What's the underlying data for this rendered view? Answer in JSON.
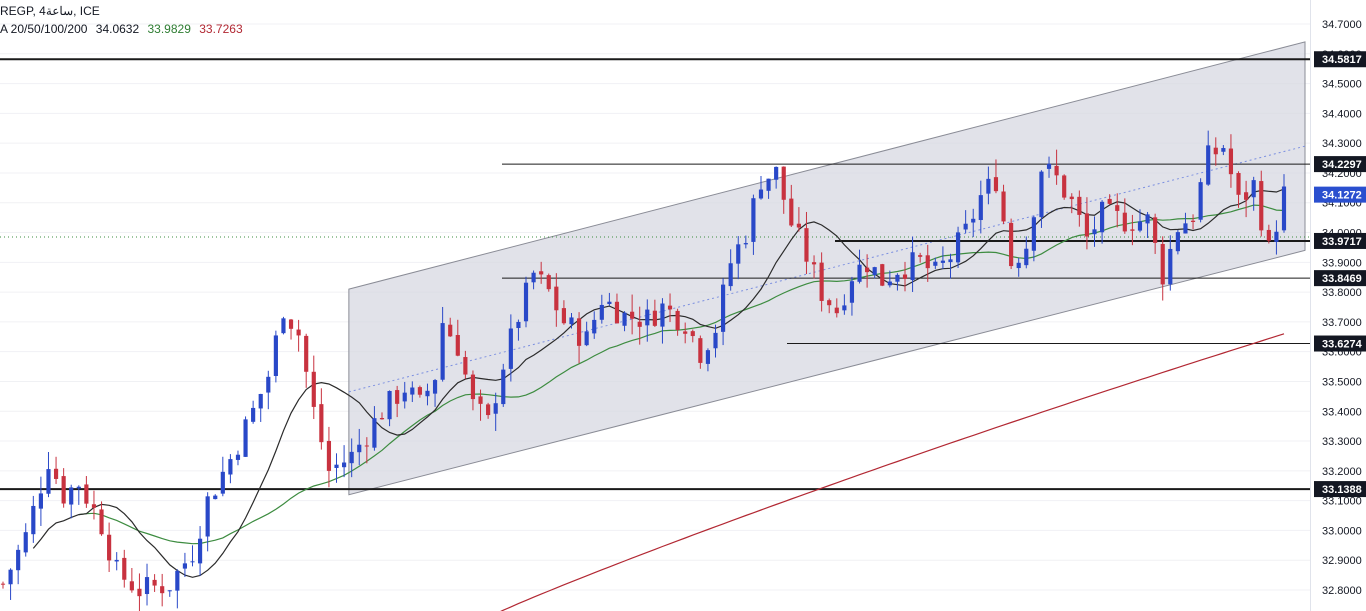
{
  "legend": {
    "symbol": "REGP, 4ساعة, ICE",
    "ma_label": "A 20/50/100/200",
    "ma_values": [
      {
        "value": "34.0632",
        "color": "#131722"
      },
      {
        "value": "33.9829",
        "color": "#2e7d32"
      },
      {
        "value": "33.7263",
        "color": "#b22833"
      }
    ]
  },
  "colors": {
    "up": "#2948c8",
    "down": "#c8323f",
    "ma20": "#2b2b2b",
    "ma50": "#3d8c40",
    "ma200": "#b22833",
    "channel_fill": "#d7d8e2",
    "current_price_tag": "#2a4fcf"
  },
  "chart_data": {
    "type": "candlestick",
    "ylim": [
      32.78,
      34.75
    ],
    "ytick_labels": [
      "32.8000",
      "32.9000",
      "33.0000",
      "33.1000",
      "33.2000",
      "33.3000",
      "33.4000",
      "33.5000",
      "33.6000",
      "33.7000",
      "33.8000",
      "33.9000",
      "34.0000",
      "34.1000",
      "34.2000",
      "34.3000",
      "34.4000",
      "34.5000",
      "34.6000",
      "34.7000"
    ],
    "price_levels": [
      {
        "label": "34.5817",
        "value": 34.5817,
        "weight": "heavy",
        "from": "left"
      },
      {
        "label": "34.2297",
        "value": 34.2297,
        "weight": "thin",
        "from": "mid"
      },
      {
        "label": "33.9717",
        "value": 33.9717,
        "weight": "heavy",
        "from": "mid"
      },
      {
        "label": "33.8469",
        "value": 33.8469,
        "weight": "thin",
        "from": "mid"
      },
      {
        "label": "33.6274",
        "value": 33.6274,
        "weight": "thin",
        "from": "mid"
      },
      {
        "label": "33.1388",
        "value": 33.1388,
        "weight": "heavy",
        "from": "left"
      }
    ],
    "current_price": {
      "label": "34.1272",
      "value": 34.1272
    },
    "dotted_level": 33.985,
    "channel": {
      "start": {
        "bar": 0.27,
        "lower": 33.12,
        "upper": 33.81
      },
      "end": {
        "bar": 1.0,
        "lower": 33.94,
        "upper": 34.64
      }
    },
    "candles": []
  }
}
